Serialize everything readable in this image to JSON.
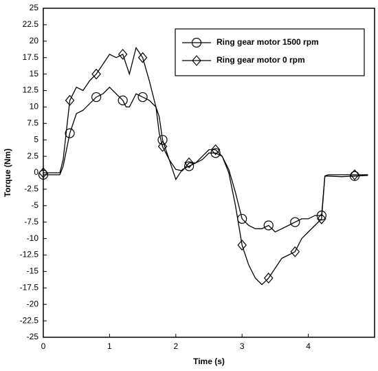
{
  "chart_data": {
    "type": "line",
    "xlabel": "Time (s)",
    "ylabel": "Torque (Nm)",
    "xlim": [
      0,
      5
    ],
    "xticks": [
      0,
      1,
      2,
      3,
      4
    ],
    "ylim": [
      -25,
      25
    ],
    "yticks": [
      -25,
      -22.5,
      -20,
      -17.5,
      -15,
      -12.5,
      -10,
      -7.5,
      -5,
      -2.5,
      0,
      2.5,
      5,
      7.5,
      10,
      12.5,
      15,
      17.5,
      20,
      22.5,
      25
    ],
    "legend": "upper right",
    "series": [
      {
        "name": "Ring gear motor 1500 rpm",
        "color": "#000000",
        "marker": "circle",
        "x": [
          0,
          0.1,
          0.25,
          0.3,
          0.4,
          0.5,
          0.6,
          0.7,
          0.8,
          0.9,
          1.0,
          1.1,
          1.2,
          1.25,
          1.3,
          1.4,
          1.5,
          1.6,
          1.7,
          1.75,
          1.8,
          1.9,
          2.0,
          2.1,
          2.2,
          2.3,
          2.4,
          2.5,
          2.6,
          2.7,
          2.8,
          2.9,
          3.0,
          3.1,
          3.2,
          3.3,
          3.4,
          3.5,
          3.6,
          3.7,
          3.8,
          3.9,
          4.0,
          4.1,
          4.2,
          4.25,
          4.3,
          4.5,
          4.7,
          4.9
        ],
        "y": [
          -0.3,
          -0.3,
          -0.3,
          1,
          6,
          9,
          9.5,
          10.5,
          11.5,
          12,
          13,
          12,
          11,
          10,
          10,
          12,
          11.5,
          11,
          10,
          8.5,
          5,
          2,
          -1,
          0.5,
          1,
          1.5,
          2,
          3,
          3,
          2.5,
          0.5,
          -3,
          -7,
          -8,
          -8.5,
          -8.5,
          -8,
          -9,
          -8.5,
          -8,
          -7.5,
          -7,
          -7,
          -6.5,
          -6.5,
          -0.5,
          -0.5,
          -0.6,
          -0.5,
          -0.4
        ]
      },
      {
        "name": "Ring gear motor 0 rpm",
        "color": "#000000",
        "marker": "diamond",
        "x": [
          0,
          0.1,
          0.25,
          0.3,
          0.4,
          0.5,
          0.6,
          0.7,
          0.8,
          0.9,
          1.0,
          1.1,
          1.2,
          1.25,
          1.3,
          1.4,
          1.5,
          1.6,
          1.7,
          1.75,
          1.8,
          1.9,
          2.0,
          2.1,
          2.2,
          2.3,
          2.4,
          2.5,
          2.6,
          2.7,
          2.8,
          2.9,
          3.0,
          3.1,
          3.2,
          3.3,
          3.4,
          3.5,
          3.6,
          3.7,
          3.8,
          3.9,
          4.0,
          4.1,
          4.2,
          4.25,
          4.3,
          4.5,
          4.7,
          4.9
        ],
        "y": [
          0,
          0,
          0,
          2,
          11,
          13,
          12.5,
          14,
          15,
          16.5,
          18,
          17.5,
          18,
          16.5,
          15,
          19,
          17.5,
          14,
          10,
          6,
          4,
          2,
          0.5,
          0.3,
          1.5,
          1.5,
          2.5,
          3.5,
          3.5,
          2.5,
          0,
          -5,
          -11,
          -14,
          -16,
          -17,
          -16,
          -14.5,
          -13,
          -12.5,
          -12,
          -10,
          -9,
          -8,
          -7,
          -0.5,
          -0.3,
          -0.3,
          -0.3,
          -0.3
        ]
      }
    ]
  }
}
